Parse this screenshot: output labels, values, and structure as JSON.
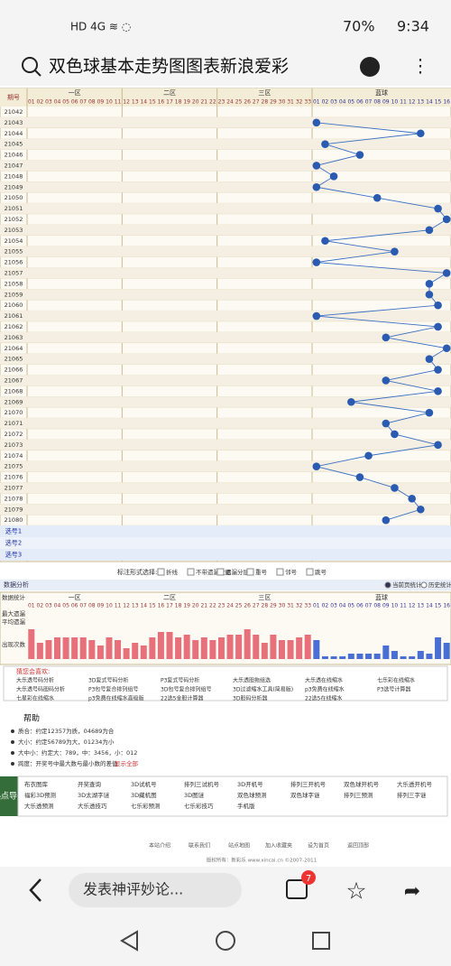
{
  "status": {
    "battery": "70%",
    "time": "9:34"
  },
  "search": {
    "query": "双色球基本走势图图表新浪爱彩"
  },
  "trend": {
    "header": "期号",
    "zones": [
      "一区",
      "二区",
      "三区",
      "蓝球"
    ],
    "red_columns": [
      "01",
      "02",
      "03",
      "04",
      "05",
      "06",
      "07",
      "08",
      "09",
      "10",
      "11",
      "12",
      "13",
      "14",
      "15",
      "16",
      "17",
      "18",
      "19",
      "20",
      "21",
      "22",
      "23",
      "24",
      "25",
      "26",
      "27",
      "28",
      "29",
      "30",
      "31",
      "32",
      "33"
    ],
    "blue_columns": [
      "01",
      "02",
      "03",
      "04",
      "05",
      "06",
      "07",
      "08",
      "09",
      "10",
      "11",
      "12",
      "13",
      "14",
      "15",
      "16"
    ],
    "periods": [
      "21042",
      "21043",
      "21044",
      "21045",
      "21046",
      "21047",
      "21048",
      "21049",
      "21050",
      "21051",
      "21052",
      "21053",
      "21054",
      "21055",
      "21056",
      "21057",
      "21058",
      "21059",
      "21060",
      "21061",
      "21062",
      "21063",
      "21064",
      "21065",
      "21066",
      "21067",
      "21068",
      "21069",
      "21070",
      "21071",
      "21072",
      "21073",
      "21074",
      "21075",
      "21076",
      "21077",
      "21078",
      "21079",
      "21080"
    ],
    "blue": [
      null,
      1,
      13,
      2,
      6,
      1,
      3,
      1,
      8,
      15,
      16,
      14,
      2,
      10,
      1,
      16,
      14,
      14,
      15,
      1,
      15,
      9,
      16,
      14,
      15,
      9,
      15,
      5,
      14,
      9,
      10,
      15,
      7,
      1,
      6,
      10,
      12,
      13,
      9
    ],
    "picks": [
      "选号1",
      "选号2",
      "选号3"
    ]
  },
  "options": {
    "label": "标注形式选择:",
    "items": [
      "折线",
      "不带遗漏数据",
      "遗漏分层",
      "重号",
      "邻号",
      "跳号"
    ]
  },
  "analysis": {
    "title": "数据分析",
    "tabs": [
      "当前页统计",
      "历史统计"
    ],
    "row_labels": [
      "数据统计",
      "最大遗漏",
      "平均遗漏",
      "出现次数"
    ],
    "red_counts": [
      11,
      6,
      7,
      8,
      8,
      8,
      8,
      7,
      5,
      8,
      7,
      4,
      6,
      5,
      8,
      10,
      10,
      8,
      9,
      7,
      8,
      7,
      8,
      9,
      9,
      11,
      9,
      6,
      9,
      7,
      7,
      8,
      9
    ],
    "blue_counts": [
      7,
      1,
      1,
      1,
      2,
      2,
      2,
      2,
      5,
      3,
      1,
      1,
      3,
      2,
      8,
      6
    ]
  },
  "suggest": {
    "title": "猜您会喜欢:",
    "links": [
      "大乐透号码分析",
      "3D复式号码分析",
      "P3复式号码分析",
      "大乐透胆拖组选",
      "大乐透在线缩水",
      "七乐彩在线缩水",
      "大乐透号码胆码分析",
      "P3包号复合排列组号",
      "3D包号复合排列组号",
      "3D过滤缩水工具(简易版)",
      "p3免费在线缩水",
      "P3选号计算器",
      "七星彩在线缩水",
      "p3免费在线缩水高级版",
      "22选5金胆计算器",
      "3D胆码分析器",
      "22选5在线缩水"
    ]
  },
  "help": {
    "title": "帮助",
    "lines": [
      "质合：约定12357为质，04689为合",
      "大小：约定56789为大，01234为小",
      "大中小：约定大：789，中：3456，小：012",
      "跨度：开奖号中最大数与最小数的差值"
    ],
    "more": "显示全部"
  },
  "hot": {
    "title": "热点导航",
    "links": [
      "布衣图库",
      "开奖查询",
      "3D试机号",
      "排列三试机号",
      "3D开机号",
      "排列三开机号",
      "双色球开机号",
      "大乐透开机号",
      "福彩3D预测",
      "3D太湖字谜",
      "3D藏机图",
      "3D图谜",
      "双色球预测",
      "双色球字谜",
      "排列三预测",
      "排列三字谜",
      "大乐透预测",
      "大乐透技巧",
      "七乐彩预测",
      "七乐彩技巧",
      "手机版"
    ]
  },
  "footer": {
    "links": [
      "本站介绍",
      "联系我们",
      "站点地图",
      "加入收藏夹",
      "设为首页",
      "返回顶部"
    ],
    "copyright": "版权所有：新彩乐 www.xincai.cn ©2007-2011"
  },
  "browser": {
    "comment": "发表神评妙论...",
    "badge": "7"
  }
}
